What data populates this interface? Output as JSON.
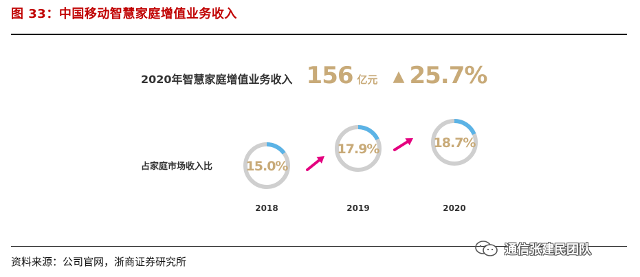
{
  "figure": {
    "title": "图 33：中国移动智慧家庭增值业务收入",
    "source": "资料来源：公司官网，浙商证券研究所",
    "watermark": "通信张建民团队"
  },
  "colors": {
    "accent_red": "#c00000",
    "gold": "#c8aa78",
    "ring_gray": "#cfcfcf",
    "ring_blue": "#5bb3e6",
    "arrow_pink": "#e4007f"
  },
  "chart_data": {
    "type": "pie",
    "title": "2020年智慧家庭增值业务收入",
    "headline_value": "156",
    "headline_unit": "亿元",
    "growth_symbol": "▲",
    "growth": "25.7%",
    "series_label": "占家庭市场收入比",
    "categories": [
      "2018",
      "2019",
      "2020"
    ],
    "values": [
      15.0,
      17.9,
      18.7
    ],
    "value_labels": [
      "15.0%",
      "17.9%",
      "18.7%"
    ],
    "unit": "%"
  }
}
